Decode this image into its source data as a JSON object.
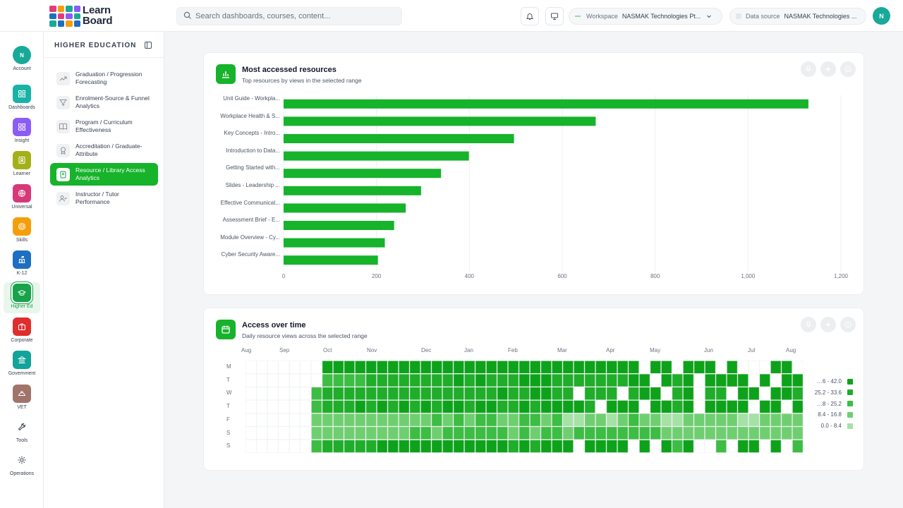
{
  "brand": {
    "line1": "Learn",
    "line2": "Board"
  },
  "header": {
    "search_placeholder": "Search dashboards, courses, content...",
    "workspace_label": "Workspace",
    "workspace_value": "NASMAK Technologies Pt...",
    "datasource_label": "Data source",
    "datasource_value": "NASMAK Technologies ...",
    "user_initial": "N"
  },
  "rail": [
    {
      "label": "Account",
      "icon": "account-avatar",
      "color": "#18a999"
    },
    {
      "label": "Dashboards",
      "icon": "grid-icon",
      "color": "#18b3a6"
    },
    {
      "label": "Insight",
      "icon": "grid-icon",
      "color": "#8b5cf6"
    },
    {
      "label": "Learner",
      "icon": "id-badge-icon",
      "color": "#a3b019"
    },
    {
      "label": "Universal",
      "icon": "globe-icon",
      "color": "#d6387a"
    },
    {
      "label": "Skills",
      "icon": "target-icon",
      "color": "#f59e0b"
    },
    {
      "label": "K-12",
      "icon": "school-icon",
      "color": "#1d6fc2"
    },
    {
      "label": "Higher Ed",
      "icon": "graduation-cap-icon",
      "color": "#16a34a"
    },
    {
      "label": "Corporate",
      "icon": "briefcase-icon",
      "color": "#e02d2d"
    },
    {
      "label": "Government",
      "icon": "landmark-icon",
      "color": "#12a39a"
    },
    {
      "label": "VET",
      "icon": "hardhat-icon",
      "color": "#a1746b"
    },
    {
      "label": "Tools",
      "icon": "wrench-icon",
      "color": "#ffffff"
    },
    {
      "label": "Operations",
      "icon": "gear-icon",
      "color": "#ffffff"
    }
  ],
  "subnav": {
    "title": "HIGHER EDUCATION",
    "items": [
      {
        "label": "Graduation / Progression Forecasting",
        "icon": "trend-up-icon"
      },
      {
        "label": "Enrolment-Source & Funnel Analytics",
        "icon": "funnel-icon"
      },
      {
        "label": "Program / Curriculum Effectiveness",
        "icon": "book-open-icon"
      },
      {
        "label": "Accreditation / Graduate-Attribute",
        "icon": "award-icon"
      },
      {
        "label": "Resource / Library Access Analytics",
        "icon": "library-book-icon"
      },
      {
        "label": "Instructor / Tutor Performance",
        "icon": "user-check-icon"
      }
    ]
  },
  "card1": {
    "title": "Most accessed resources",
    "subtitle": "Top resources by views in the selected range"
  },
  "card2": {
    "title": "Access over time",
    "subtitle": "Daily resource views across the selected range"
  },
  "colors": {
    "accent": "#16b32b"
  },
  "chart_data": [
    {
      "type": "bar",
      "orientation": "horizontal",
      "categories": [
        "Unit Guide - Workpla...",
        "Workplace Health & S...",
        "Key Concepts - Intro...",
        "Introduction to Data...",
        "Getting Started with...",
        "Slides - Leadership ...",
        "Effective Communicat...",
        "Assessment Brief - E...",
        "Module Overview - Cy...",
        "Cyber Security Aware..."
      ],
      "values": [
        1130,
        672,
        496,
        399,
        339,
        296,
        263,
        238,
        218,
        203
      ],
      "xlim": [
        0,
        1200
      ],
      "xticks": [
        "0",
        "200",
        "400",
        "600",
        "800",
        "1,000",
        "1,200"
      ],
      "grid": "vertical",
      "color": "#16b32b"
    },
    {
      "type": "heatmap",
      "months": [
        "Aug",
        "Sep",
        "Oct",
        "Nov",
        "Dec",
        "Jan",
        "Feb",
        "Mar",
        "Apr",
        "May",
        "Jun",
        "Jul",
        "Aug"
      ],
      "weekdays": [
        "M",
        "T",
        "W",
        "T",
        "F",
        "S",
        "S"
      ],
      "legend": [
        "…6 - 42.0",
        "25.2 - 33.6",
        "…8 - 25.2",
        "8.4 - 16.8",
        "0.0 - 8.4"
      ],
      "scale_colors": [
        "#ffffff",
        "#a6e1a6",
        "#6fcf70",
        "#3dbd43",
        "#20ad2a",
        "#0ea21b"
      ],
      "levels": [
        "0000000555555555555555555555555555550550555050005505000",
        "0000000333344444444545444555444444455054505555050550500550",
        "0000003444444444444444454455440444045504504405505544052",
        "0000003444545454545545544545555405550554505555055054055",
        "0000002222222222232323322332311221232211222221122222",
        "0000002222222223323333332323323333333322222222222222",
        "0000003444445555555555554545550555505053500305505032"
      ]
    }
  ]
}
